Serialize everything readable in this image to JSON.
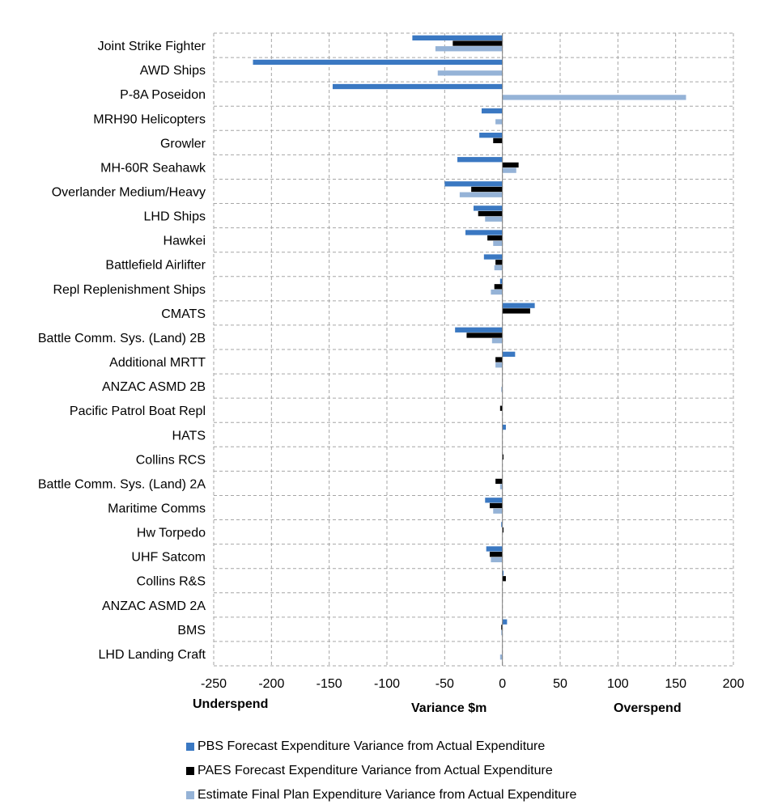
{
  "chart_data": {
    "type": "bar",
    "orientation": "horizontal",
    "categories": [
      "Joint Strike Fighter",
      "AWD Ships",
      "P-8A Poseidon",
      "MRH90 Helicopters",
      "Growler",
      "MH-60R Seahawk",
      "Overlander Medium/Heavy",
      "LHD Ships",
      "Hawkei",
      "Battlefield Airlifter",
      "Repl Replenishment Ships",
      "CMATS",
      "Battle Comm. Sys. (Land) 2B",
      "Additional MRTT",
      "ANZAC ASMD 2B",
      "Pacific Patrol Boat Repl",
      "HATS",
      "Collins RCS",
      "Battle Comm. Sys. (Land) 2A",
      "Maritime Comms",
      "Hw Torpedo",
      "UHF Satcom",
      "Collins R&S",
      "ANZAC ASMD 2A",
      "BMS",
      "LHD Landing Craft"
    ],
    "series": [
      {
        "name": "PBS Forecast Expenditure Variance from Actual Expenditure",
        "color": "#3a78c2",
        "values": [
          -78,
          -216,
          -147,
          -18,
          -20,
          -39,
          -50,
          -25,
          -32,
          -16,
          -2,
          28,
          -41,
          11,
          0,
          0,
          3,
          0,
          0,
          -15,
          -1,
          -14,
          1,
          0,
          4,
          0
        ]
      },
      {
        "name": "PAES Forecast Expenditure Variance from Actual Expenditure",
        "color": "#000000",
        "values": [
          -43,
          0,
          0,
          0,
          -8,
          14,
          -27,
          -21,
          -13,
          -6,
          -7,
          24,
          -31,
          -6,
          0,
          -2,
          0,
          1,
          -6,
          -11,
          1,
          -11,
          3,
          0,
          -1,
          0
        ]
      },
      {
        "name": "Estimate Final Plan Expenditure Variance from Actual Expenditure",
        "color": "#95b3d7",
        "values": [
          -58,
          -56,
          159,
          -6,
          0,
          12,
          -37,
          -15,
          -8,
          -7,
          -10,
          0,
          -9,
          -6,
          -1,
          0,
          0,
          0,
          -2,
          -8,
          0,
          -10,
          0,
          0,
          -1,
          -2
        ]
      }
    ],
    "xlim": [
      -250,
      200
    ],
    "x_ticks": [
      -250,
      -200,
      -150,
      -100,
      -50,
      0,
      50,
      100,
      150,
      200
    ],
    "xlabel": "Variance $m",
    "left_annotation": "Underspend",
    "right_annotation": "Overspend",
    "grid": true,
    "legend_position": "bottom"
  }
}
